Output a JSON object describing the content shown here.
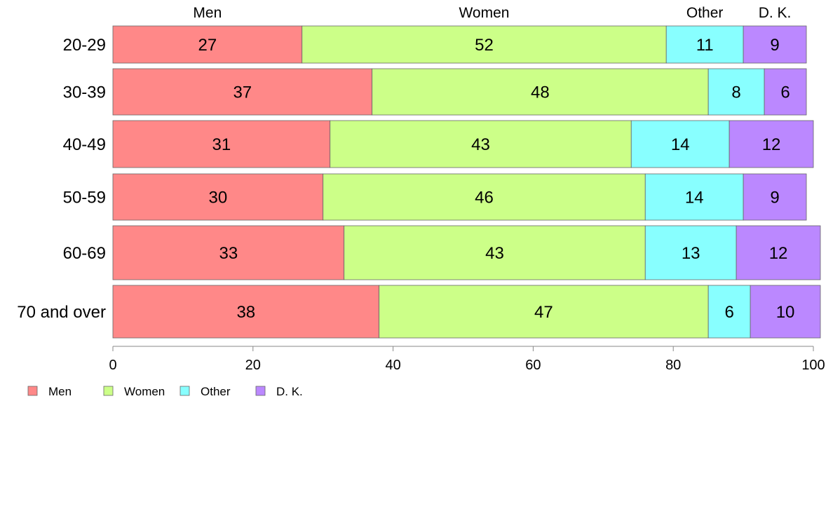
{
  "chart_data": {
    "type": "bar",
    "orientation": "horizontal",
    "stacked": true,
    "categories": [
      "20-29",
      "30-39",
      "40-49",
      "50-59",
      "60-69",
      "70 and over"
    ],
    "series": [
      {
        "name": "Men",
        "color": "#ff8888",
        "values": [
          27,
          37,
          31,
          30,
          33,
          38
        ]
      },
      {
        "name": "Women",
        "color": "#ccff88",
        "values": [
          52,
          48,
          43,
          46,
          43,
          47
        ]
      },
      {
        "name": "Other",
        "color": "#88ffff",
        "values": [
          11,
          8,
          14,
          14,
          13,
          6
        ]
      },
      {
        "name": "D. K.",
        "color": "#bb88ff",
        "values": [
          9,
          6,
          12,
          9,
          12,
          10
        ]
      }
    ],
    "top_labels": [
      "Men",
      "Women",
      "Other",
      "D. K."
    ],
    "xlim": [
      0,
      100
    ],
    "xticks": [
      0,
      20,
      40,
      60,
      80,
      100
    ],
    "grid": false,
    "legend": {
      "position": "bottom-left",
      "entries": [
        "Men",
        "Women",
        "Other",
        "D. K."
      ]
    }
  }
}
